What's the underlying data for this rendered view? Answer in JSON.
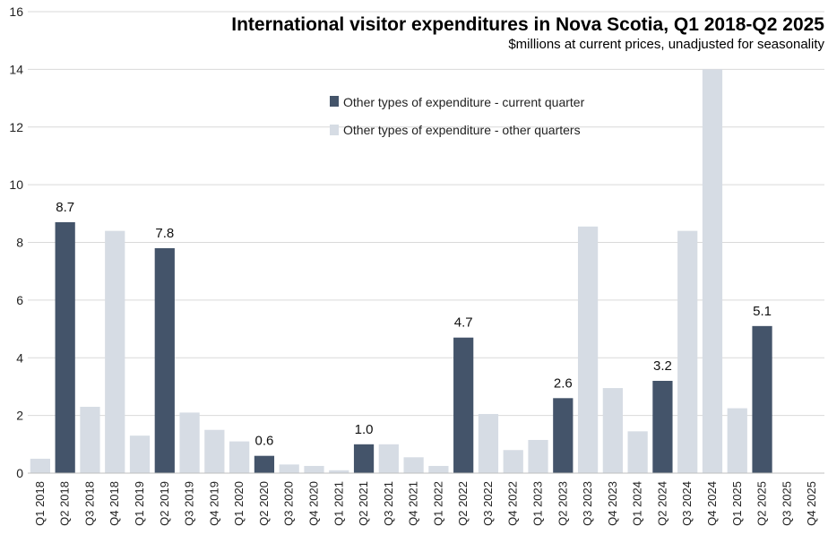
{
  "chart_data": {
    "type": "bar",
    "title": "International visitor expenditures in Nova Scotia, Q1 2018-Q2 2025",
    "subtitle": "$millions at current prices, unadjusted for seasonality",
    "xlabel": "",
    "ylabel": "",
    "ylim": [
      0,
      16
    ],
    "yticks": [
      0,
      2,
      4,
      6,
      8,
      10,
      12,
      14,
      16
    ],
    "grid": true,
    "legend_position": "top-center",
    "categories": [
      "Q1 2018",
      "Q2 2018",
      "Q3 2018",
      "Q4 2018",
      "Q1 2019",
      "Q2 2019",
      "Q3 2019",
      "Q4 2019",
      "Q1 2020",
      "Q2 2020",
      "Q3 2020",
      "Q4 2020",
      "Q1 2021",
      "Q2 2021",
      "Q3 2021",
      "Q4 2021",
      "Q1 2022",
      "Q2 2022",
      "Q3 2022",
      "Q4 2022",
      "Q1 2023",
      "Q2 2023",
      "Q3 2023",
      "Q4 2023",
      "Q1 2024",
      "Q2 2024",
      "Q3 2024",
      "Q4 2024",
      "Q1 2025",
      "Q2 2025",
      "Q3 2025",
      "Q4 2025"
    ],
    "series": [
      {
        "name": "Other types of expenditure - current quarter",
        "color": "#44546a",
        "values": [
          null,
          8.7,
          null,
          null,
          null,
          7.8,
          null,
          null,
          null,
          0.6,
          null,
          null,
          null,
          1.0,
          null,
          null,
          null,
          4.7,
          null,
          null,
          null,
          2.6,
          null,
          null,
          null,
          3.2,
          null,
          null,
          null,
          5.1,
          null,
          null
        ],
        "data_labels": [
          null,
          "8.7",
          null,
          null,
          null,
          "7.8",
          null,
          null,
          null,
          "0.6",
          null,
          null,
          null,
          "1.0",
          null,
          null,
          null,
          "4.7",
          null,
          null,
          null,
          "2.6",
          null,
          null,
          null,
          "3.2",
          null,
          null,
          null,
          "5.1",
          null,
          null
        ]
      },
      {
        "name": "Other types of expenditure - other quarters",
        "color": "#d6dce4",
        "values": [
          0.5,
          null,
          2.3,
          8.4,
          1.3,
          null,
          2.1,
          1.5,
          1.1,
          null,
          0.3,
          0.25,
          0.1,
          null,
          1.0,
          0.55,
          0.25,
          null,
          2.05,
          0.8,
          1.15,
          null,
          8.55,
          2.95,
          1.45,
          null,
          8.4,
          14.0,
          2.25,
          null,
          null,
          null
        ]
      }
    ]
  }
}
